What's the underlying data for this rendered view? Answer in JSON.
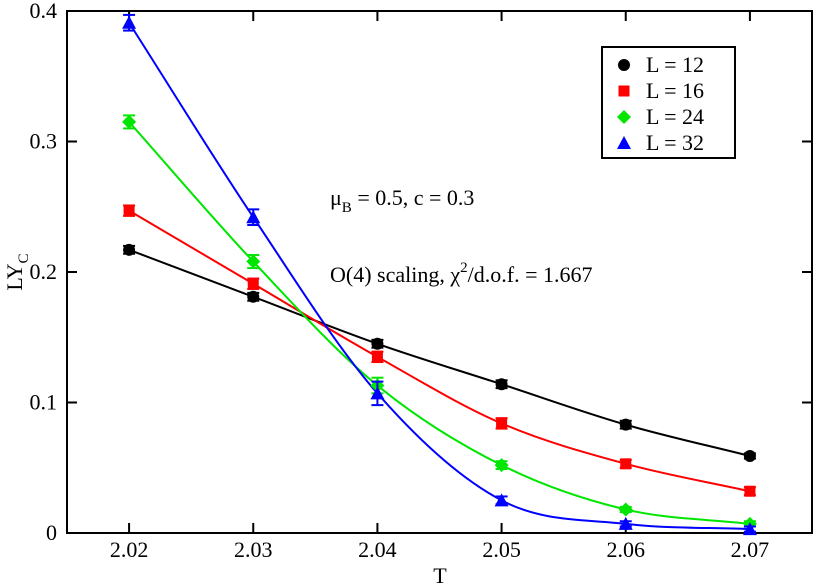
{
  "chart_data": {
    "type": "scatter",
    "xlabel": "T",
    "ylabel": {
      "text": "LY",
      "sub": "C"
    },
    "xlim": [
      2.015,
      2.075
    ],
    "ylim": [
      0,
      0.4
    ],
    "xticks": [
      2.02,
      2.03,
      2.04,
      2.05,
      2.06,
      2.07
    ],
    "yticks": [
      0,
      0.1,
      0.2,
      0.3,
      0.4
    ],
    "x": [
      2.02,
      2.03,
      2.04,
      2.05,
      2.06,
      2.07
    ],
    "series": [
      {
        "name": "L = 12",
        "color": "#000000",
        "marker": "circle",
        "values": [
          0.217,
          0.181,
          0.145,
          0.114,
          0.083,
          0.059
        ],
        "errors": [
          0.003,
          0.003,
          0.003,
          0.003,
          0.003,
          0.002
        ]
      },
      {
        "name": "L = 16",
        "color": "#ff0000",
        "marker": "square",
        "values": [
          0.247,
          0.191,
          0.135,
          0.084,
          0.053,
          0.032
        ],
        "errors": [
          0.004,
          0.004,
          0.004,
          0.004,
          0.003,
          0.003
        ]
      },
      {
        "name": "L = 24",
        "color": "#00e600",
        "marker": "diamond",
        "values": [
          0.315,
          0.208,
          0.113,
          0.052,
          0.018,
          0.007
        ],
        "errors": [
          0.005,
          0.005,
          0.006,
          0.003,
          0.002,
          0.002
        ]
      },
      {
        "name": "L = 32",
        "color": "#0000ff",
        "marker": "triangle",
        "values": [
          0.391,
          0.242,
          0.107,
          0.025,
          0.007,
          0.003
        ],
        "errors": [
          0.006,
          0.006,
          0.009,
          0.003,
          0.002,
          0.002
        ]
      }
    ],
    "annotations": [
      {
        "text": "μ",
        "sub": "B",
        "rest": " = 0.5, c = 0.3"
      },
      {
        "text": "O(4) scaling, χ",
        "sup": "2",
        "rest": "/d.o.f. = 1.667"
      }
    ]
  }
}
